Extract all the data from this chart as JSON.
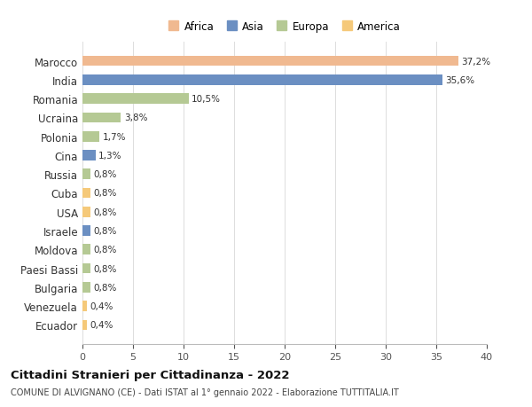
{
  "categories": [
    "Marocco",
    "India",
    "Romania",
    "Ucraina",
    "Polonia",
    "Cina",
    "Russia",
    "Cuba",
    "USA",
    "Israele",
    "Moldova",
    "Paesi Bassi",
    "Bulgaria",
    "Venezuela",
    "Ecuador"
  ],
  "values": [
    37.2,
    35.6,
    10.5,
    3.8,
    1.7,
    1.3,
    0.8,
    0.8,
    0.8,
    0.8,
    0.8,
    0.8,
    0.8,
    0.4,
    0.4
  ],
  "colors": [
    "#f0b990",
    "#6b8fc2",
    "#b5c994",
    "#b5c994",
    "#b5c994",
    "#6b8fc2",
    "#b5c994",
    "#f5c97a",
    "#f5c97a",
    "#6b8fc2",
    "#b5c994",
    "#b5c994",
    "#b5c994",
    "#f5c97a",
    "#f5c97a"
  ],
  "labels": [
    "37,2%",
    "35,6%",
    "10,5%",
    "3,8%",
    "1,7%",
    "1,3%",
    "0,8%",
    "0,8%",
    "0,8%",
    "0,8%",
    "0,8%",
    "0,8%",
    "0,8%",
    "0,4%",
    "0,4%"
  ],
  "xlim": [
    0,
    40
  ],
  "xticks": [
    0,
    5,
    10,
    15,
    20,
    25,
    30,
    35,
    40
  ],
  "title": "Cittadini Stranieri per Cittadinanza - 2022",
  "subtitle": "COMUNE DI ALVIGNANO (CE) - Dati ISTAT al 1° gennaio 2022 - Elaborazione TUTTITALIA.IT",
  "legend_labels": [
    "Africa",
    "Asia",
    "Europa",
    "America"
  ],
  "legend_colors": [
    "#f0b990",
    "#6b8fc2",
    "#b5c994",
    "#f5c97a"
  ],
  "background_color": "#ffffff",
  "bar_height": 0.55
}
